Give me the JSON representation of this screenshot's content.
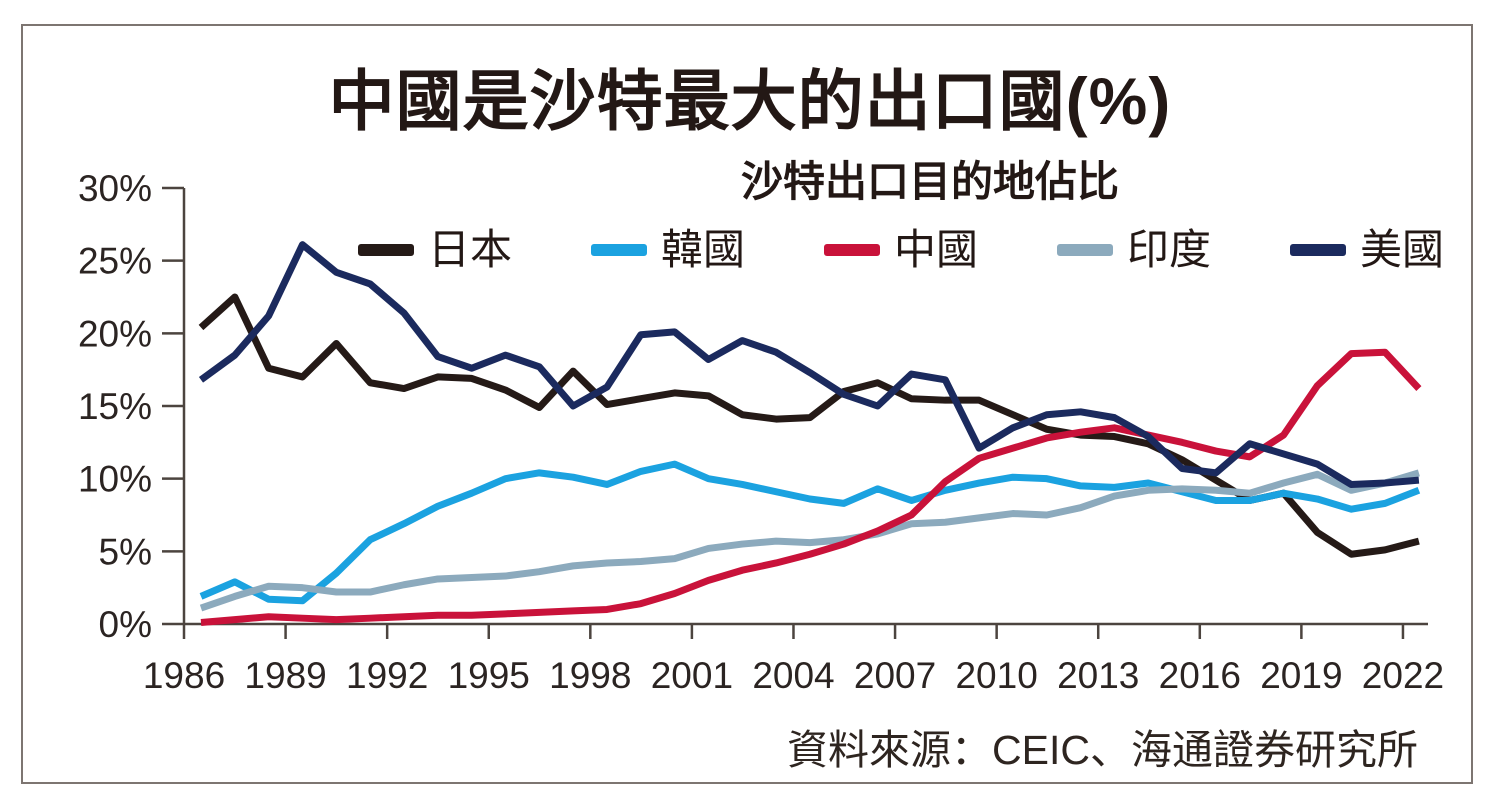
{
  "chart": {
    "title": "中國是沙特最大的出口國(%)",
    "subtitle": "沙特出口目的地佔比",
    "source": "資料來源：CEIC、海通證券研究所"
  },
  "chart_data": {
    "type": "line",
    "title": "中國是沙特最大的出口國(%)",
    "subtitle": "沙特出口目的地佔比",
    "source": "資料來源：CEIC、海通證券研究所",
    "xlabel": "",
    "ylabel": "",
    "ylim": [
      0,
      30
    ],
    "y_ticks": [
      0,
      5,
      10,
      15,
      20,
      25,
      30
    ],
    "y_tick_suffix": "%",
    "x_ticks": [
      1986,
      1989,
      1992,
      1995,
      1998,
      2001,
      2004,
      2007,
      2010,
      2013,
      2016,
      2019,
      2022
    ],
    "grid": false,
    "legend_position": "top",
    "axis_color": "#4c443f",
    "tick_label_color": "#2b2422",
    "draw_order": [
      0,
      1,
      3,
      2,
      4
    ],
    "x": [
      1986,
      1987,
      1988,
      1989,
      1990,
      1991,
      1992,
      1993,
      1994,
      1995,
      1996,
      1997,
      1998,
      1999,
      2000,
      2001,
      2002,
      2003,
      2004,
      2005,
      2006,
      2007,
      2008,
      2009,
      2010,
      2011,
      2012,
      2013,
      2014,
      2015,
      2016,
      2017,
      2018,
      2019,
      2020,
      2021,
      2022
    ],
    "series": [
      {
        "name": "日本",
        "color": "#251a17",
        "values": [
          20.4,
          22.5,
          17.6,
          17.0,
          19.3,
          16.6,
          16.2,
          17.0,
          16.9,
          16.1,
          14.9,
          17.4,
          15.1,
          15.5,
          15.9,
          15.7,
          14.4,
          14.1,
          14.2,
          16.0,
          16.6,
          15.5,
          15.4,
          15.4,
          14.4,
          13.4,
          13.0,
          12.9,
          12.4,
          11.3,
          9.9,
          8.5,
          9.0,
          6.3,
          4.8,
          5.1,
          5.7
        ]
      },
      {
        "name": "韓國",
        "color": "#1ba2e0",
        "values": [
          1.9,
          2.9,
          1.7,
          1.6,
          3.5,
          5.8,
          6.9,
          8.1,
          9.0,
          10.0,
          10.4,
          10.1,
          9.6,
          10.5,
          11.0,
          10.0,
          9.6,
          9.1,
          8.6,
          8.3,
          9.3,
          8.5,
          9.2,
          9.7,
          10.1,
          10.0,
          9.5,
          9.4,
          9.7,
          9.1,
          8.5,
          8.5,
          9.0,
          8.6,
          7.9,
          8.3,
          9.2
        ]
      },
      {
        "name": "中國",
        "color": "#c9123a",
        "values": [
          0.1,
          0.3,
          0.5,
          0.4,
          0.3,
          0.4,
          0.5,
          0.6,
          0.6,
          0.7,
          0.8,
          0.9,
          1.0,
          1.4,
          2.1,
          3.0,
          3.7,
          4.2,
          4.8,
          5.5,
          6.4,
          7.5,
          9.8,
          11.4,
          12.1,
          12.8,
          13.2,
          13.5,
          13.0,
          12.5,
          11.9,
          11.5,
          13.0,
          16.4,
          18.6,
          18.7,
          16.2
        ]
      },
      {
        "name": "印度",
        "color": "#8caabd",
        "values": [
          1.1,
          1.9,
          2.6,
          2.5,
          2.2,
          2.2,
          2.7,
          3.1,
          3.2,
          3.3,
          3.6,
          4.0,
          4.2,
          4.3,
          4.5,
          5.2,
          5.5,
          5.7,
          5.6,
          5.8,
          6.2,
          6.9,
          7.0,
          7.3,
          7.6,
          7.5,
          8.0,
          8.8,
          9.2,
          9.3,
          9.2,
          9.0,
          9.7,
          10.3,
          9.2,
          9.7,
          10.4
        ]
      },
      {
        "name": "美國",
        "color": "#1b2a5e",
        "values": [
          16.8,
          18.5,
          21.2,
          26.1,
          24.2,
          23.4,
          21.4,
          18.4,
          17.6,
          18.5,
          17.7,
          15.0,
          16.3,
          19.9,
          20.1,
          18.2,
          19.5,
          18.7,
          17.3,
          15.8,
          15.0,
          17.2,
          16.8,
          12.1,
          13.5,
          14.4,
          14.6,
          14.2,
          12.9,
          10.7,
          10.4,
          12.4,
          11.7,
          11.0,
          9.6,
          9.7,
          9.9
        ]
      }
    ]
  }
}
